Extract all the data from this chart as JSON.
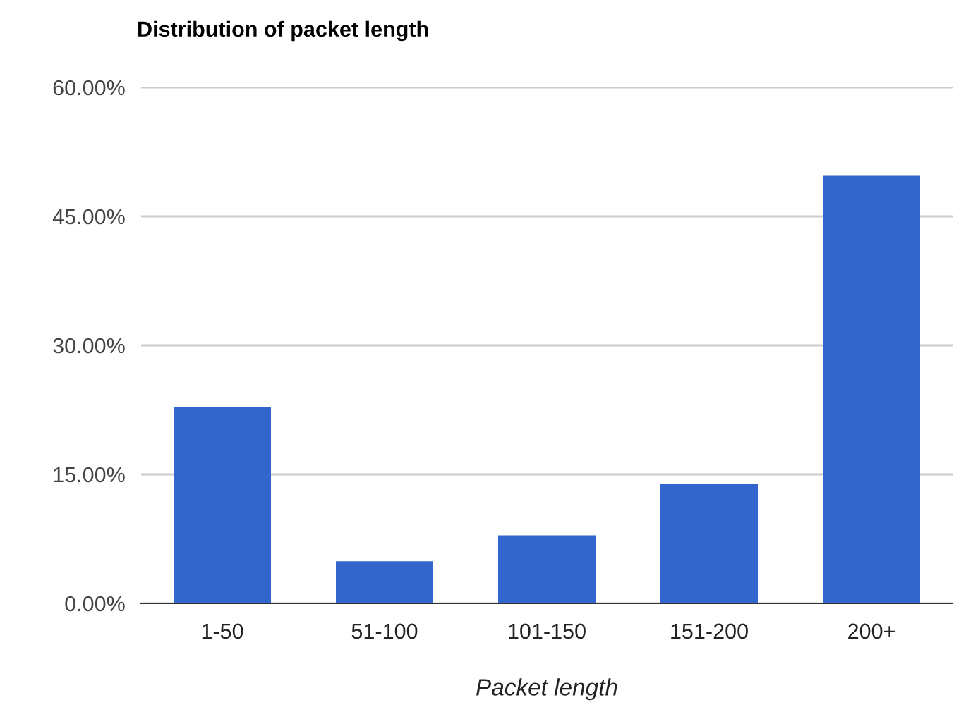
{
  "chart_data": {
    "type": "bar",
    "title": "Distribution of packet length",
    "xlabel": "Packet length",
    "categories": [
      "1-50",
      "51-100",
      "101-150",
      "151-200",
      "200+"
    ],
    "values": [
      22.8,
      4.9,
      7.9,
      13.9,
      49.8
    ],
    "color": "#3366cc",
    "ylim": [
      0,
      60
    ],
    "yticks": [
      {
        "value": 0,
        "label": "0.00%"
      },
      {
        "value": 15,
        "label": "15.00%"
      },
      {
        "value": 30,
        "label": "30.00%"
      },
      {
        "value": 45,
        "label": "45.00%"
      },
      {
        "value": 60,
        "label": "60.00%"
      }
    ],
    "grid": "y",
    "legend": false
  }
}
